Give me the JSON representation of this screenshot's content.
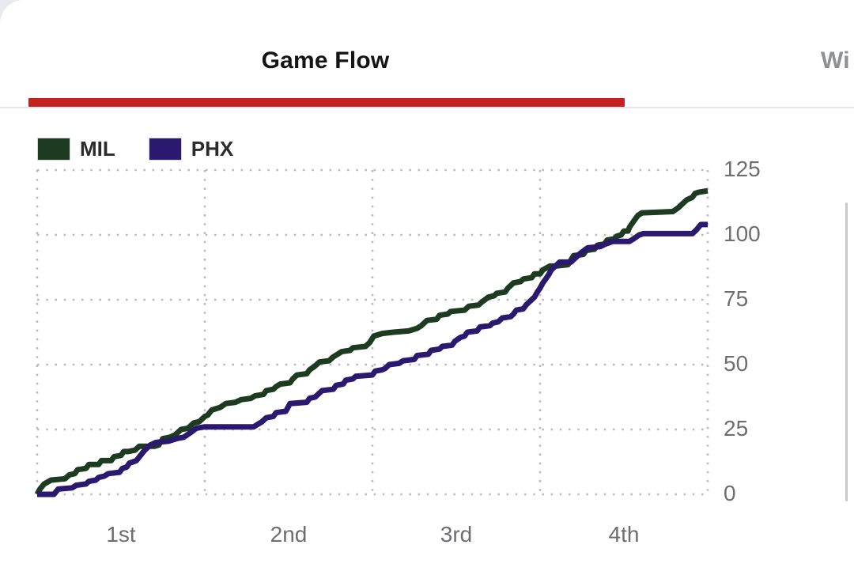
{
  "tabs": {
    "active": {
      "label": "Game Flow"
    },
    "next": {
      "label_visible": "Wi"
    }
  },
  "legend": [
    {
      "team": "MIL",
      "color": "#1c3b20"
    },
    {
      "team": "PHX",
      "color": "#2a196e"
    }
  ],
  "colors": {
    "accent_red": "#c32221",
    "mil_green": "#1c3b20",
    "phx_purple": "#2a196e",
    "axis_text": "#6d6e70",
    "grid_dot": "#bcbcbc",
    "tab_active_text": "#141414",
    "tab_inactive_text": "#8f9093",
    "hairline": "#e7e7e7",
    "scrollbar": "#c7c9cb",
    "corner_backdrop": "#e8eaed"
  },
  "chart_data": {
    "type": "line",
    "title": "Game Flow",
    "style": "cumulative-score-steps",
    "grid": "dotted",
    "legend_position": "top-left",
    "x_ticks": [
      "1st",
      "2nd",
      "3rd",
      "4th"
    ],
    "x_unit": "game minutes",
    "x_range": [
      0,
      48
    ],
    "quarter_boundaries": [
      0,
      12,
      24,
      36,
      48
    ],
    "y_ticks": [
      0,
      25,
      50,
      75,
      100,
      125
    ],
    "ylim": [
      0,
      125
    ],
    "final_values": {
      "MIL": 117,
      "PHX": 104
    },
    "series": [
      {
        "name": "MIL",
        "color": "#1c3b20",
        "points": [
          [
            0,
            0
          ],
          [
            0.2,
            2
          ],
          [
            0.5,
            4
          ],
          [
            1.0,
            5.5
          ],
          [
            2.0,
            6
          ],
          [
            2.3,
            7.5
          ],
          [
            2.7,
            8
          ],
          [
            2.9,
            9.5
          ],
          [
            3.5,
            10
          ],
          [
            3.7,
            11.5
          ],
          [
            4.4,
            11.5
          ],
          [
            4.6,
            13
          ],
          [
            5.3,
            13
          ],
          [
            5.5,
            14.5
          ],
          [
            6.0,
            15
          ],
          [
            6.2,
            16.5
          ],
          [
            6.5,
            16.5
          ],
          [
            7.0,
            17
          ],
          [
            7.3,
            18.5
          ],
          [
            8.4,
            18.5
          ],
          [
            8.7,
            19
          ],
          [
            9.0,
            21.5
          ],
          [
            9.5,
            22
          ],
          [
            9.9,
            23
          ],
          [
            10.3,
            25
          ],
          [
            10.8,
            25.5
          ],
          [
            11.2,
            27.5
          ],
          [
            11.6,
            28
          ],
          [
            12.0,
            30
          ],
          [
            12.2,
            30.5
          ],
          [
            12.5,
            32.5
          ],
          [
            13.1,
            33.5
          ],
          [
            13.5,
            35
          ],
          [
            14.2,
            35.5
          ],
          [
            14.6,
            36.5
          ],
          [
            15.3,
            37
          ],
          [
            15.6,
            38
          ],
          [
            16.2,
            38.5
          ],
          [
            16.4,
            40
          ],
          [
            16.9,
            40.5
          ],
          [
            17.1,
            41.5
          ],
          [
            17.4,
            42.5
          ],
          [
            18.1,
            43
          ],
          [
            18.3,
            44.5
          ],
          [
            18.6,
            46
          ],
          [
            19.3,
            46.5
          ],
          [
            19.5,
            48
          ],
          [
            19.9,
            49.5
          ],
          [
            20.2,
            51
          ],
          [
            20.9,
            51.5
          ],
          [
            21.2,
            53
          ],
          [
            21.8,
            55
          ],
          [
            22.4,
            55.5
          ],
          [
            22.6,
            56.5
          ],
          [
            23.5,
            57
          ],
          [
            23.8,
            58.5
          ],
          [
            24.1,
            61
          ],
          [
            24.7,
            62
          ],
          [
            25.5,
            62.5
          ],
          [
            26.6,
            63
          ],
          [
            27.2,
            64
          ],
          [
            27.5,
            65
          ],
          [
            27.9,
            67
          ],
          [
            28.6,
            67.5
          ],
          [
            28.8,
            69
          ],
          [
            29.4,
            69.5
          ],
          [
            29.6,
            70.5
          ],
          [
            30.6,
            71
          ],
          [
            30.9,
            72.5
          ],
          [
            31.6,
            73
          ],
          [
            31.8,
            74
          ],
          [
            32.3,
            76
          ],
          [
            32.7,
            76.5
          ],
          [
            32.9,
            77.5
          ],
          [
            33.5,
            78
          ],
          [
            33.7,
            79.5
          ],
          [
            34.1,
            81.5
          ],
          [
            34.6,
            82
          ],
          [
            34.8,
            83
          ],
          [
            35.4,
            83.5
          ],
          [
            35.6,
            85
          ],
          [
            36.0,
            85
          ],
          [
            36.2,
            86.5
          ],
          [
            36.7,
            88
          ],
          [
            37.1,
            88
          ],
          [
            38.0,
            88.5
          ],
          [
            38.4,
            92
          ],
          [
            39.1,
            92.5
          ],
          [
            39.3,
            94
          ],
          [
            39.9,
            94.5
          ],
          [
            40.1,
            96
          ],
          [
            40.6,
            96.5
          ],
          [
            40.8,
            98
          ],
          [
            41.3,
            98.5
          ],
          [
            41.5,
            99.5
          ],
          [
            41.8,
            100
          ],
          [
            42.0,
            101.5
          ],
          [
            42.3,
            101.5
          ],
          [
            42.4,
            103
          ],
          [
            42.6,
            104.5
          ],
          [
            42.8,
            106
          ],
          [
            43.0,
            107.5
          ],
          [
            43.3,
            108.5
          ],
          [
            45.5,
            109
          ],
          [
            45.9,
            110.5
          ],
          [
            46.2,
            112
          ],
          [
            46.5,
            113.5
          ],
          [
            46.9,
            114.5
          ],
          [
            47.1,
            116
          ],
          [
            47.4,
            116.5
          ],
          [
            48,
            117
          ]
        ]
      },
      {
        "name": "PHX",
        "color": "#2a196e",
        "points": [
          [
            0,
            0
          ],
          [
            1.2,
            0
          ],
          [
            1.5,
            2
          ],
          [
            2.5,
            2.5
          ],
          [
            2.8,
            3.5
          ],
          [
            3.5,
            4
          ],
          [
            3.7,
            5
          ],
          [
            4.2,
            5.5
          ],
          [
            4.4,
            6.5
          ],
          [
            4.8,
            7
          ],
          [
            5.1,
            8
          ],
          [
            5.9,
            8.5
          ],
          [
            6.1,
            10
          ],
          [
            6.4,
            10.5
          ],
          [
            6.6,
            12
          ],
          [
            7.1,
            13
          ],
          [
            7.4,
            15
          ],
          [
            7.7,
            17
          ],
          [
            8.1,
            19
          ],
          [
            8.5,
            20
          ],
          [
            9.4,
            20.5
          ],
          [
            10.0,
            21.5
          ],
          [
            10.5,
            22
          ],
          [
            10.9,
            23.5
          ],
          [
            11.4,
            25.5
          ],
          [
            12.0,
            26
          ],
          [
            15.5,
            26
          ],
          [
            15.8,
            27
          ],
          [
            16.1,
            28
          ],
          [
            16.4,
            29.5
          ],
          [
            16.9,
            30
          ],
          [
            17.1,
            31.5
          ],
          [
            17.8,
            32
          ],
          [
            18.1,
            35
          ],
          [
            19.3,
            35.5
          ],
          [
            19.5,
            37
          ],
          [
            19.9,
            37.5
          ],
          [
            20.1,
            38.5
          ],
          [
            20.4,
            40
          ],
          [
            21.2,
            40.5
          ],
          [
            21.4,
            42
          ],
          [
            21.9,
            42.5
          ],
          [
            22.1,
            44
          ],
          [
            22.6,
            44.5
          ],
          [
            22.8,
            45.5
          ],
          [
            24.0,
            46
          ],
          [
            24.2,
            47.5
          ],
          [
            24.7,
            48
          ],
          [
            24.9,
            48.5
          ],
          [
            25.2,
            50
          ],
          [
            25.9,
            50.5
          ],
          [
            26.2,
            51.5
          ],
          [
            27.0,
            52
          ],
          [
            27.2,
            53.5
          ],
          [
            28.0,
            54
          ],
          [
            28.2,
            55.5
          ],
          [
            28.8,
            56
          ],
          [
            29.0,
            57
          ],
          [
            29.7,
            57.5
          ],
          [
            29.9,
            59
          ],
          [
            30.3,
            60.5
          ],
          [
            30.6,
            61
          ],
          [
            30.8,
            62.5
          ],
          [
            31.5,
            63
          ],
          [
            31.7,
            64.5
          ],
          [
            32.4,
            65
          ],
          [
            32.6,
            66
          ],
          [
            33.0,
            66.5
          ],
          [
            33.3,
            68
          ],
          [
            33.9,
            68.5
          ],
          [
            34.1,
            69.5
          ],
          [
            34.3,
            71
          ],
          [
            34.8,
            71.5
          ],
          [
            35.0,
            73
          ],
          [
            35.3,
            74.5
          ],
          [
            35.6,
            76
          ],
          [
            35.8,
            78
          ],
          [
            36.0,
            79.5
          ],
          [
            36.2,
            81.5
          ],
          [
            36.4,
            83
          ],
          [
            36.6,
            84.5
          ],
          [
            36.8,
            86.5
          ],
          [
            37.1,
            88
          ],
          [
            37.4,
            89.5
          ],
          [
            38.2,
            89.5
          ],
          [
            38.5,
            91
          ],
          [
            38.9,
            93
          ],
          [
            39.4,
            95
          ],
          [
            40.3,
            95.5
          ],
          [
            40.7,
            96.5
          ],
          [
            41.2,
            97.5
          ],
          [
            42.4,
            97.5
          ],
          [
            42.7,
            98.5
          ],
          [
            43.1,
            100
          ],
          [
            43.4,
            100.5
          ],
          [
            46.9,
            100.5
          ],
          [
            47.2,
            102
          ],
          [
            47.5,
            104
          ],
          [
            48,
            104
          ]
        ]
      }
    ]
  }
}
